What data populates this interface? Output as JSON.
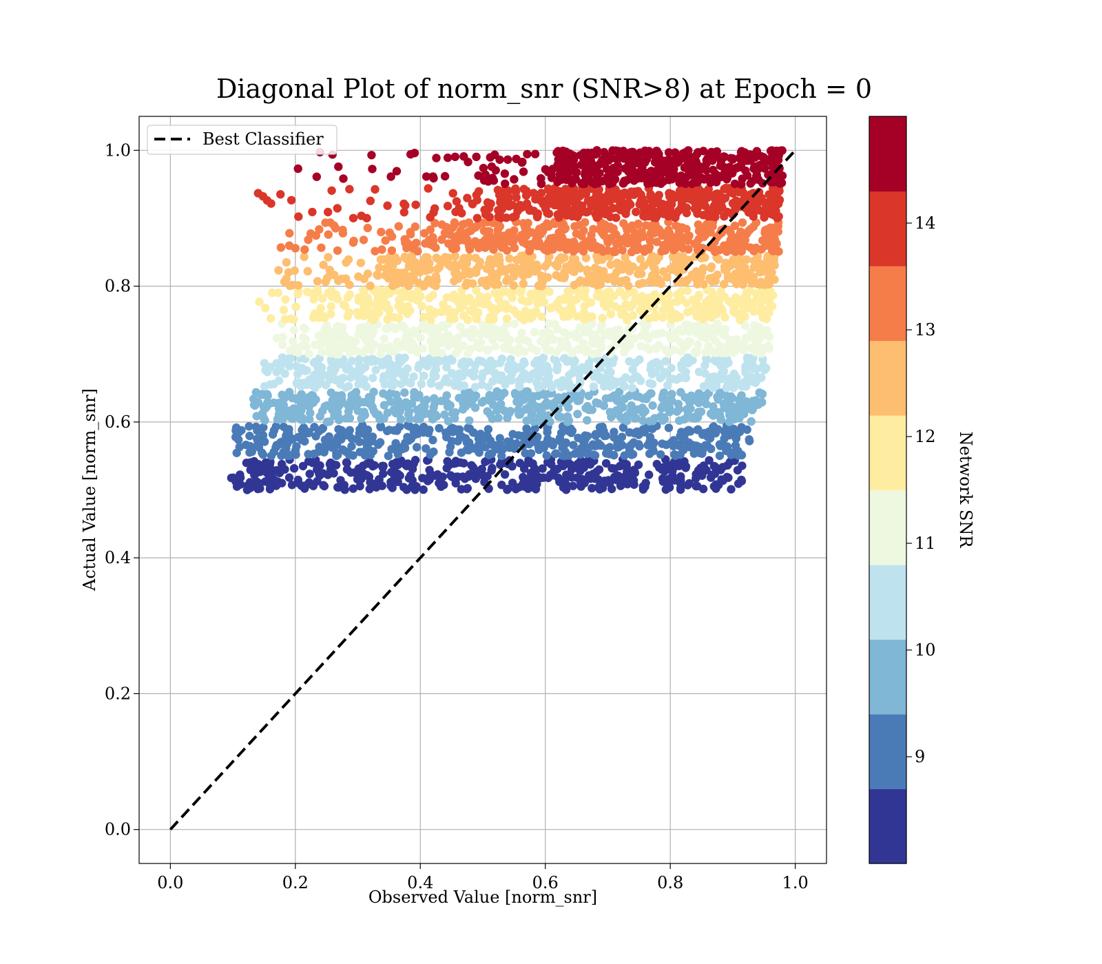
{
  "chart_data": {
    "type": "scatter",
    "title": "Diagonal Plot of norm_snr (SNR>8) at Epoch = 0",
    "xlabel": "Observed Value [norm_snr]",
    "ylabel": "Actual Value [norm_snr]",
    "xlim": [
      -0.05,
      1.05
    ],
    "ylim": [
      -0.05,
      1.05
    ],
    "xticks": [
      0.0,
      0.2,
      0.4,
      0.6,
      0.8,
      1.0
    ],
    "yticks": [
      0.0,
      0.2,
      0.4,
      0.6,
      0.8,
      1.0
    ],
    "xtick_labels": [
      "0.0",
      "0.2",
      "0.4",
      "0.6",
      "0.8",
      "1.0"
    ],
    "ytick_labels": [
      "0.0",
      "0.2",
      "0.4",
      "0.6",
      "0.8",
      "1.0"
    ],
    "grid": true,
    "legend": {
      "location": "top-left",
      "entries": [
        {
          "label": "Best Classifier",
          "style": "dashed",
          "color": "#000000"
        }
      ]
    },
    "reference_line": {
      "label": "Best Classifier",
      "x": [
        0.0,
        1.0
      ],
      "y": [
        0.0,
        1.0
      ]
    },
    "colorbar": {
      "label": "Network SNR",
      "range": [
        8,
        15
      ],
      "ticks": [
        9,
        10,
        11,
        12,
        13,
        14
      ],
      "tick_labels": [
        "9",
        "10",
        "11",
        "12",
        "13",
        "14"
      ],
      "bins": [
        {
          "snr_min": 8.0,
          "snr_max": 8.7,
          "color": "#313695"
        },
        {
          "snr_min": 8.7,
          "snr_max": 9.4,
          "color": "#4a7bb7"
        },
        {
          "snr_min": 9.4,
          "snr_max": 10.1,
          "color": "#80b6d6"
        },
        {
          "snr_min": 10.1,
          "snr_max": 10.8,
          "color": "#bfe3ee"
        },
        {
          "snr_min": 10.8,
          "snr_max": 11.5,
          "color": "#eef8e0"
        },
        {
          "snr_min": 11.5,
          "snr_max": 12.2,
          "color": "#feeda1"
        },
        {
          "snr_min": 12.2,
          "snr_max": 12.9,
          "color": "#fdbe70"
        },
        {
          "snr_min": 12.9,
          "snr_max": 13.6,
          "color": "#f57d4a"
        },
        {
          "snr_min": 13.6,
          "snr_max": 14.3,
          "color": "#da362a"
        },
        {
          "snr_min": 14.3,
          "snr_max": 15.0,
          "color": "#a50026"
        }
      ]
    },
    "series": [
      {
        "name": "SNR 8.0-8.7",
        "color": "#313695",
        "y_range": [
          0.5,
          0.545
        ],
        "x_left_core": 0.16,
        "x_right_core": 0.87,
        "x_min_scatter": 0.095,
        "x_max_scatter": 0.92
      },
      {
        "name": "SNR 8.7-9.4",
        "color": "#4a7bb7",
        "y_range": [
          0.55,
          0.595
        ],
        "x_left_core": 0.19,
        "x_right_core": 0.89,
        "x_min_scatter": 0.1,
        "x_max_scatter": 0.93
      },
      {
        "name": "SNR 9.4-10.1",
        "color": "#80b6d6",
        "y_range": [
          0.6,
          0.645
        ],
        "x_left_core": 0.21,
        "x_right_core": 0.91,
        "x_min_scatter": 0.13,
        "x_max_scatter": 0.95
      },
      {
        "name": "SNR 10.1-10.8",
        "color": "#bfe3ee",
        "y_range": [
          0.65,
          0.695
        ],
        "x_left_core": 0.24,
        "x_right_core": 0.92,
        "x_min_scatter": 0.15,
        "x_max_scatter": 0.955
      },
      {
        "name": "SNR 10.8-11.5",
        "color": "#eef8e0",
        "y_range": [
          0.7,
          0.745
        ],
        "x_left_core": 0.27,
        "x_right_core": 0.935,
        "x_min_scatter": 0.17,
        "x_max_scatter": 0.96
      },
      {
        "name": "SNR 11.5-12.2",
        "color": "#feeda1",
        "y_range": [
          0.75,
          0.795
        ],
        "x_left_core": 0.31,
        "x_right_core": 0.945,
        "x_min_scatter": 0.13,
        "x_max_scatter": 0.965
      },
      {
        "name": "SNR 12.2-12.9",
        "color": "#fdbe70",
        "y_range": [
          0.8,
          0.845
        ],
        "x_left_core": 0.36,
        "x_right_core": 0.955,
        "x_min_scatter": 0.17,
        "x_max_scatter": 0.97
      },
      {
        "name": "SNR 12.9-13.6",
        "color": "#f57d4a",
        "y_range": [
          0.85,
          0.895
        ],
        "x_left_core": 0.44,
        "x_right_core": 0.96,
        "x_min_scatter": 0.17,
        "x_max_scatter": 0.975
      },
      {
        "name": "SNR 13.6-14.3",
        "color": "#da362a",
        "y_range": [
          0.9,
          0.945
        ],
        "x_left_core": 0.53,
        "x_right_core": 0.965,
        "x_min_scatter": 0.14,
        "x_max_scatter": 0.975
      },
      {
        "name": "SNR 14.3-15.0",
        "color": "#a50026",
        "y_range": [
          0.95,
          1.0
        ],
        "x_left_core": 0.62,
        "x_right_core": 0.97,
        "x_min_scatter": 0.18,
        "x_max_scatter": 0.98
      }
    ]
  }
}
